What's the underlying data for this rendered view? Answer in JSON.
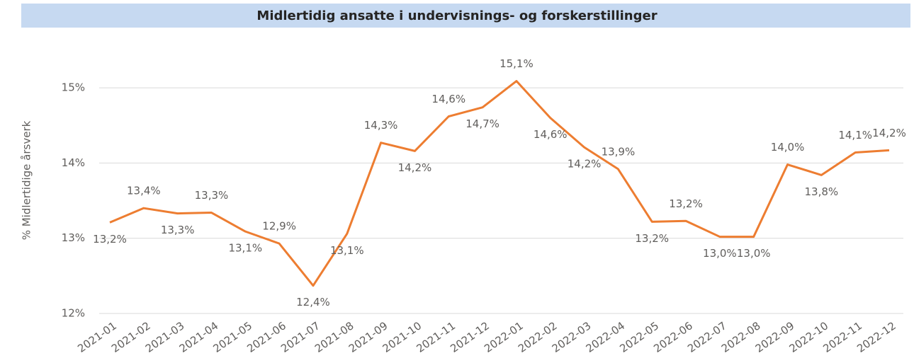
{
  "chart_data": {
    "type": "line",
    "title": "Midlertidig ansatte i undervisnings- og forskerstillinger",
    "y_label": "% Midlertidige årsverk",
    "categories": [
      "2021-01",
      "2021-02",
      "2021-03",
      "2021-04",
      "2021-05",
      "2021-06",
      "2021-07",
      "2021-08",
      "2021-09",
      "2021-10",
      "2021-11",
      "2021-12",
      "2022-01",
      "2022-02",
      "2022-03",
      "2022-04",
      "2022-05",
      "2022-06",
      "2022-07",
      "2022-08",
      "2022-09",
      "2022-10",
      "2022-11",
      "2022-12"
    ],
    "series": [
      {
        "name": "% Midlertidige årsverk",
        "color": "#ed7d31",
        "values": [
          13.21,
          13.4,
          13.33,
          13.34,
          13.09,
          12.93,
          12.37,
          13.06,
          14.27,
          14.16,
          14.62,
          14.74,
          15.09,
          14.6,
          14.21,
          13.92,
          13.22,
          13.23,
          13.02,
          13.02,
          13.98,
          13.84,
          14.14,
          14.17
        ],
        "value_labels": [
          "13,2%",
          "13,4%",
          "13,3%",
          "13,3%",
          "13,1%",
          "12,9%",
          "12,4%",
          "13,1%",
          "14,3%",
          "14,2%",
          "14,6%",
          "14,7%",
          "15,1%",
          "14,6%",
          "14,2%",
          "13,9%",
          "13,2%",
          "13,2%",
          "13,0%",
          "13,0%",
          "14,0%",
          "13,8%",
          "14,1%",
          "14,2%"
        ]
      }
    ],
    "ylim": [
      12,
      15.5
    ],
    "yticks": [
      {
        "value": 12,
        "label": "12%"
      },
      {
        "value": 13,
        "label": "13%"
      },
      {
        "value": 14,
        "label": "14%"
      },
      {
        "value": 15,
        "label": "15%"
      }
    ],
    "grid": true
  }
}
